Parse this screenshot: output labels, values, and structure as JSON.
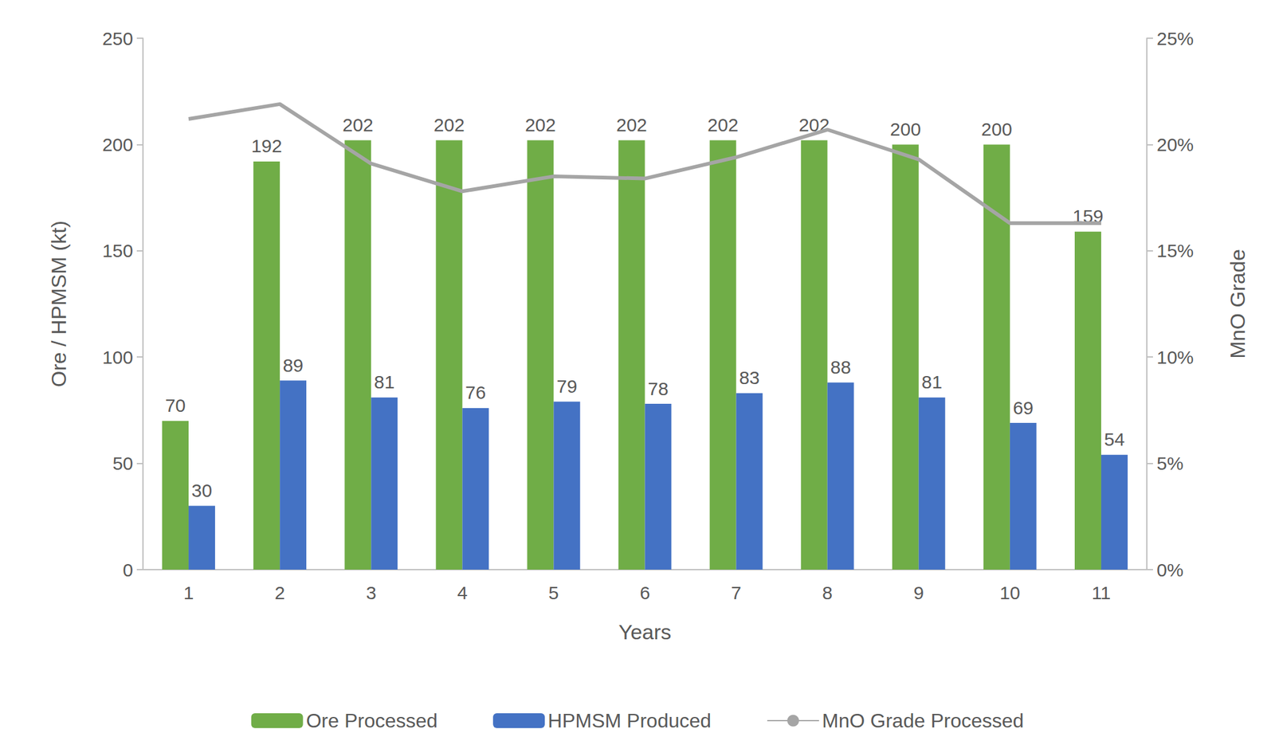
{
  "chart_data": {
    "type": "bar",
    "x_label": "Years",
    "y_label": "Ore / HPMSM (kt)",
    "y2_label": "MnO Grade",
    "categories": [
      "1",
      "2",
      "3",
      "4",
      "5",
      "6",
      "7",
      "8",
      "9",
      "10",
      "11"
    ],
    "series": [
      {
        "name": "Ore Processed",
        "type": "bar",
        "color": "#70ad47",
        "data_labels": true,
        "values": [
          70,
          192,
          202,
          202,
          202,
          202,
          202,
          202,
          200,
          200,
          159
        ]
      },
      {
        "name": "HPMSM Produced",
        "type": "bar",
        "color": "#4472c4",
        "data_labels": true,
        "values": [
          30,
          89,
          81,
          76,
          79,
          78,
          83,
          88,
          81,
          69,
          54
        ]
      },
      {
        "name": "MnO Grade Processed",
        "type": "line",
        "color": "#a5a5a5",
        "axis": "y2",
        "data_labels": false,
        "marker": "none",
        "values": [
          21.2,
          21.9,
          19.1,
          17.8,
          18.5,
          18.4,
          19.4,
          20.7,
          19.3,
          16.3,
          16.3
        ]
      }
    ],
    "ylim": [
      0,
      250
    ],
    "yticks": [
      0,
      50,
      100,
      150,
      200,
      250
    ],
    "y2lim": [
      0,
      25
    ],
    "y2ticks": [
      {
        "value": 0,
        "label": "0%"
      },
      {
        "value": 5,
        "label": "5%"
      },
      {
        "value": 10,
        "label": "10%"
      },
      {
        "value": 15,
        "label": "15%"
      },
      {
        "value": 20,
        "label": "20%"
      },
      {
        "value": 25,
        "label": "25%"
      }
    ],
    "grid": false,
    "legend": "bottom"
  }
}
